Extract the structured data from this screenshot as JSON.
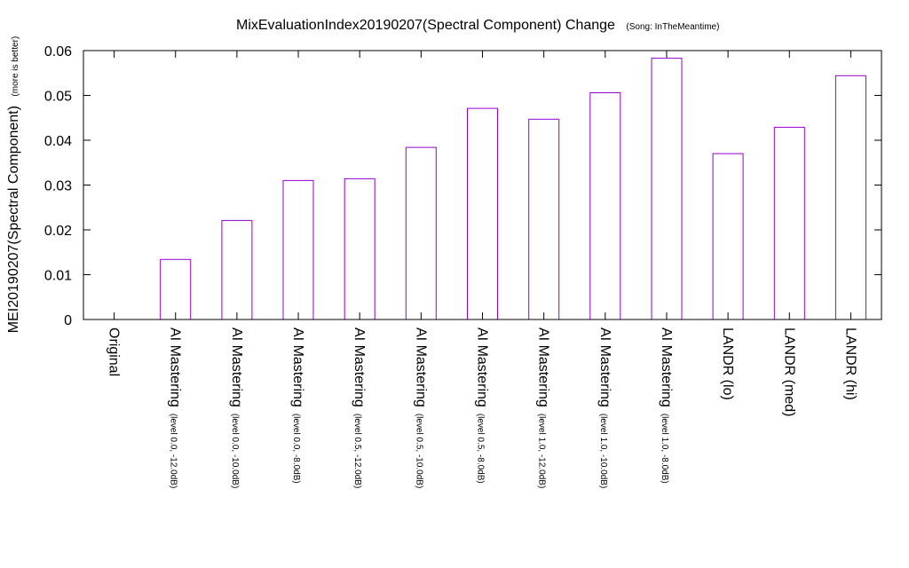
{
  "chart_data": {
    "type": "bar",
    "title": "MixEvaluationIndex20190207(Spectral Component) Change",
    "subtitle": "(Song: InTheMeantime)",
    "ylabel": "MEI20190207(Spectral Component)",
    "ylabel_note": "(more is better)",
    "xlabel": "",
    "ylim": [
      0,
      0.06
    ],
    "yticks": [
      "0",
      "0.01",
      "0.02",
      "0.03",
      "0.04",
      "0.05",
      "0.06"
    ],
    "grid": false,
    "bar_color": "#9400d3",
    "categories": [
      {
        "main": "Original",
        "sub": ""
      },
      {
        "main": "AI Mastering",
        "sub": "(level 0.0, -12.0dB)"
      },
      {
        "main": "AI Mastering",
        "sub": "(level 0.0, -10.0dB)"
      },
      {
        "main": "AI Mastering",
        "sub": "(level 0.0, -8.0dB)"
      },
      {
        "main": "AI Mastering",
        "sub": "(level 0.5, -12.0dB)"
      },
      {
        "main": "AI Mastering",
        "sub": "(level 0.5, -10.0dB)"
      },
      {
        "main": "AI Mastering",
        "sub": "(level 0.5, -8.0dB)"
      },
      {
        "main": "AI Mastering",
        "sub": "(level 1.0, -12.0dB)"
      },
      {
        "main": "AI Mastering",
        "sub": "(level 1.0, -10.0dB)"
      },
      {
        "main": "AI Mastering",
        "sub": "(level 1.0, -8.0dB)"
      },
      {
        "main": "LANDR (lo)",
        "sub": ""
      },
      {
        "main": "LANDR (med)",
        "sub": ""
      },
      {
        "main": "LANDR (hi)",
        "sub": ""
      }
    ],
    "values": [
      0,
      0.0134,
      0.0221,
      0.031,
      0.0314,
      0.0384,
      0.0471,
      0.0447,
      0.0506,
      0.0583,
      0.037,
      0.0429,
      0.0544
    ]
  }
}
